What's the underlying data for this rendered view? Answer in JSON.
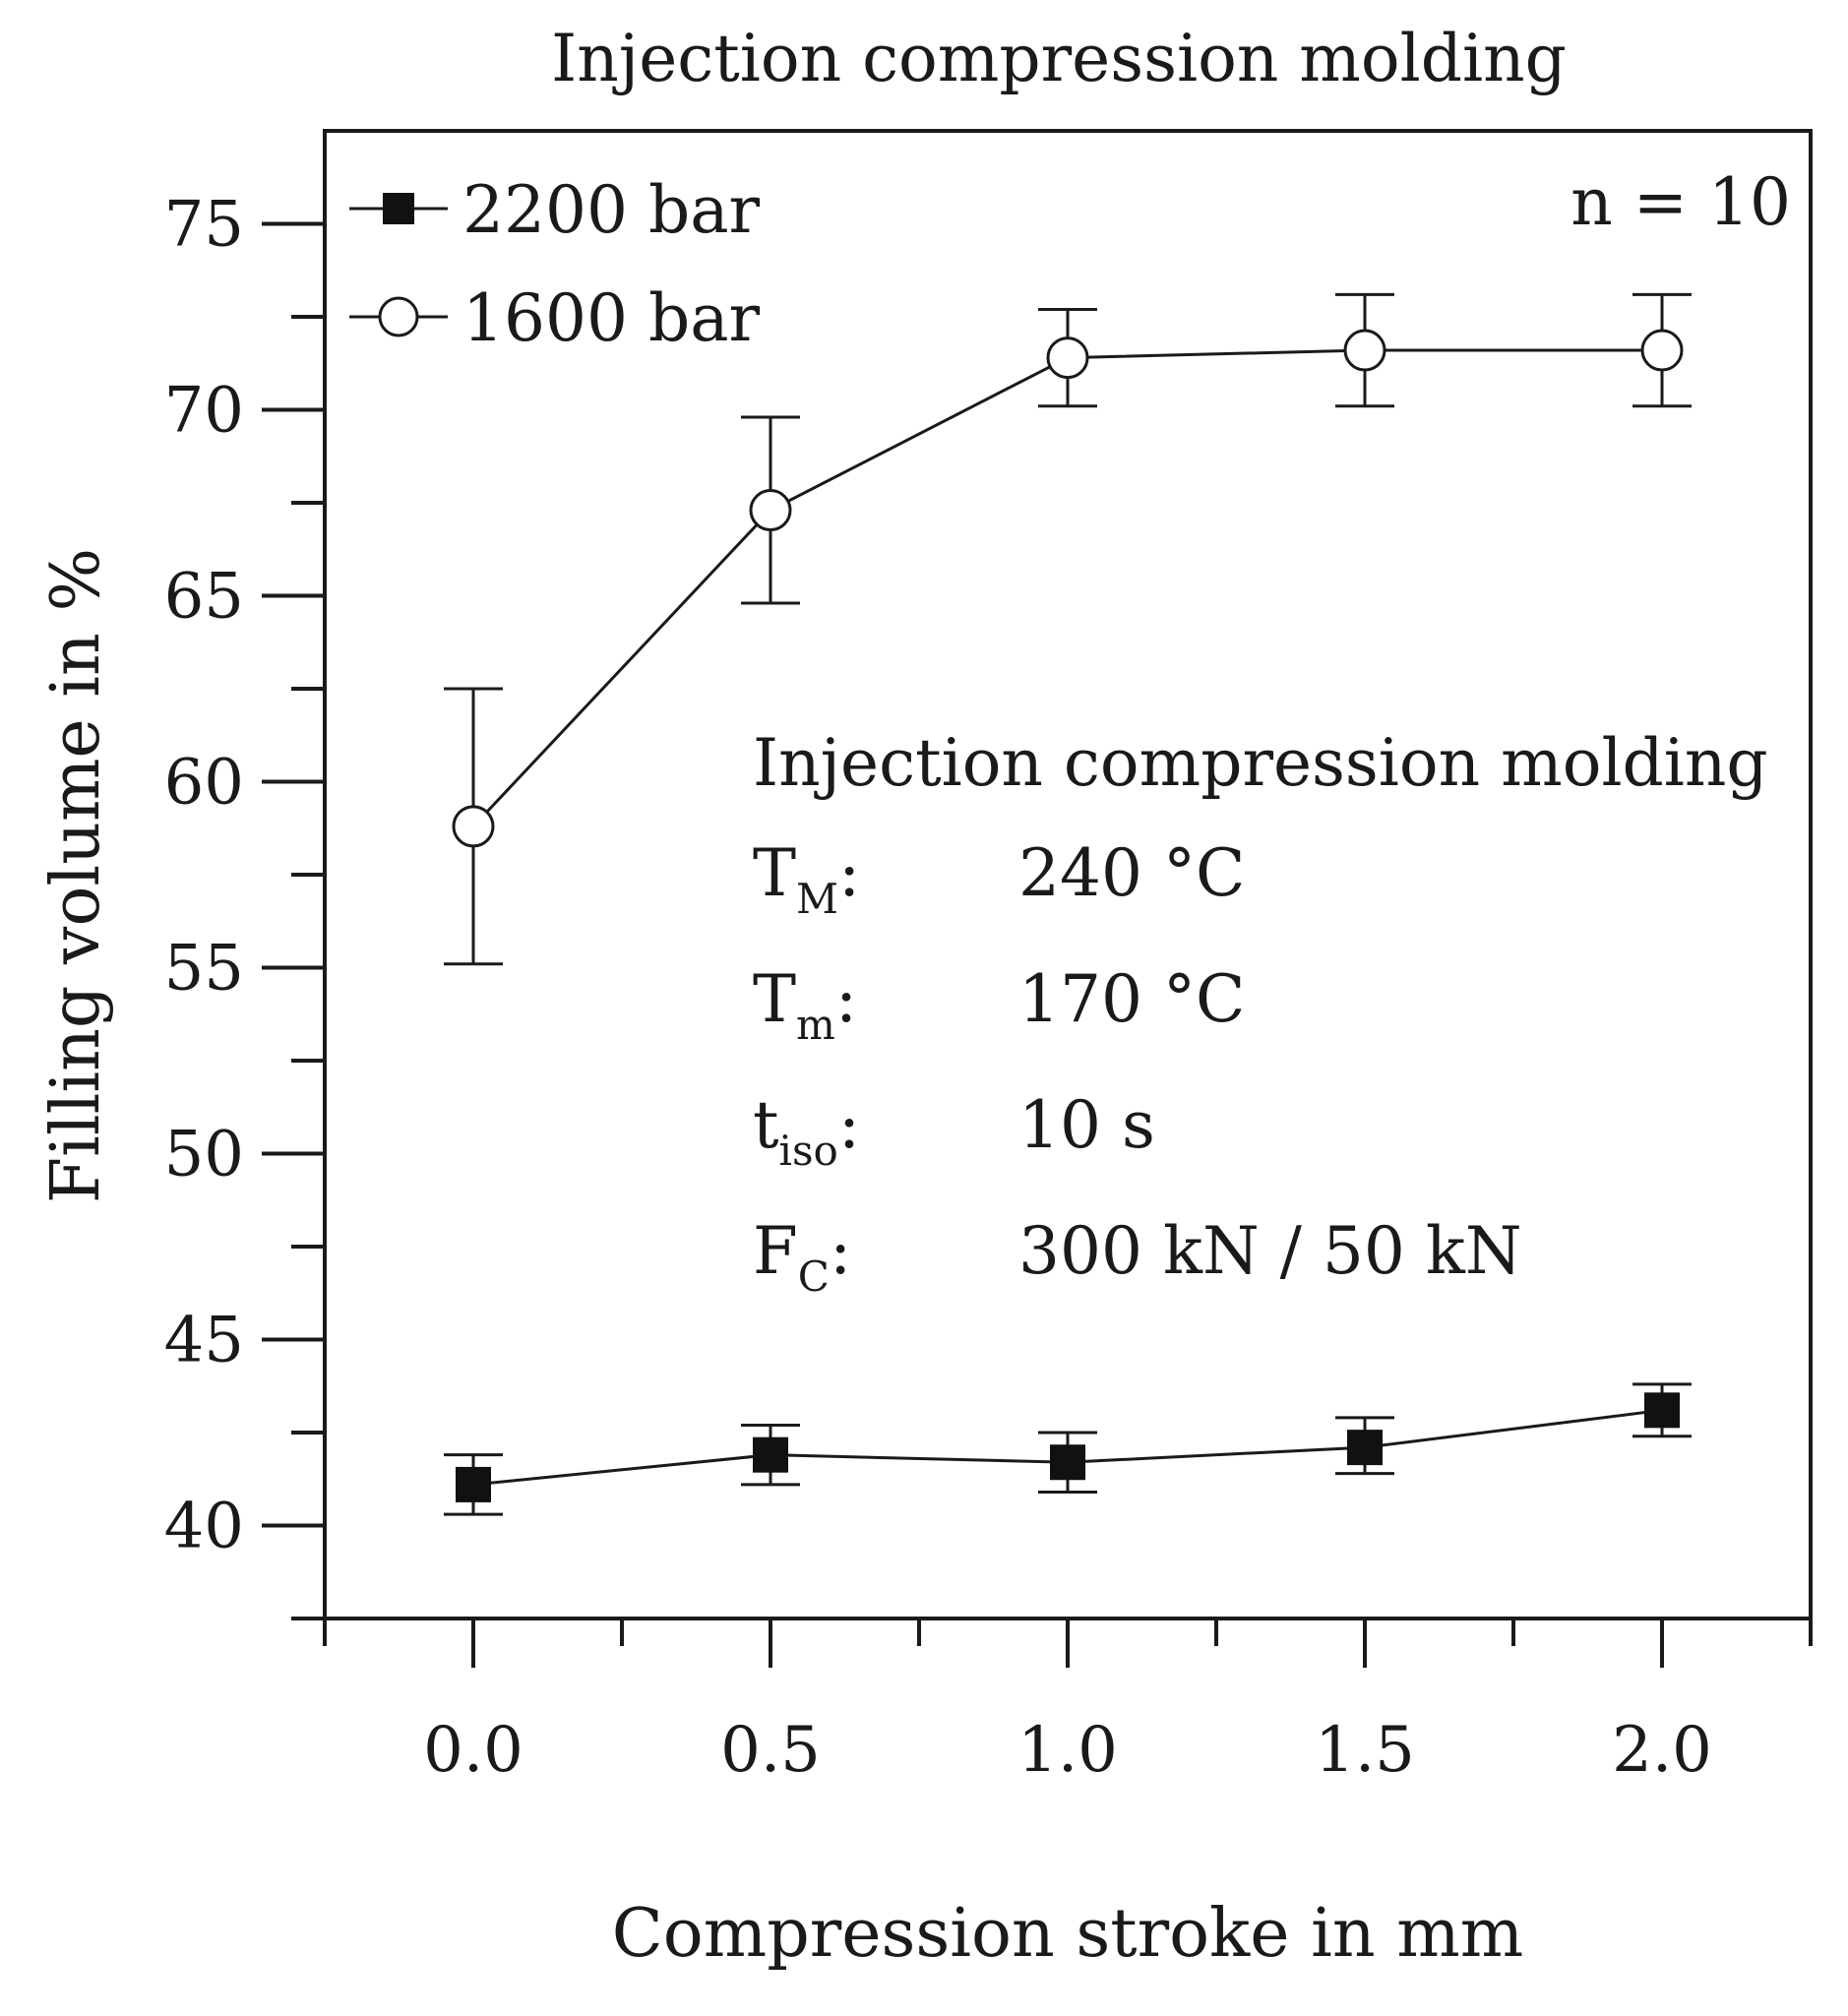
{
  "chart_data": {
    "type": "line",
    "title": "Injection compression molding",
    "xlabel": "Compression stroke in mm",
    "ylabel": "Filling volume in %",
    "xlim": [
      -0.25,
      2.25
    ],
    "ylim": [
      37.5,
      77.5
    ],
    "x_ticks": [
      0.0,
      0.5,
      1.0,
      1.5,
      2.0
    ],
    "x_tick_labels": [
      "0.0",
      "0.5",
      "1.0",
      "1.5",
      "2.0"
    ],
    "y_ticks": [
      40,
      45,
      50,
      55,
      60,
      65,
      70,
      75
    ],
    "y_tick_labels": [
      "40",
      "45",
      "50",
      "55",
      "60",
      "65",
      "70",
      "75"
    ],
    "x_minor_ticks": [
      -0.25,
      0.25,
      0.75,
      1.25,
      1.75,
      2.25
    ],
    "y_minor_ticks": [
      37.5,
      42.5,
      47.5,
      52.5,
      57.5,
      62.5,
      67.5,
      72.5
    ],
    "legend_position": "top-left",
    "series": [
      {
        "name": "2200 bar",
        "marker": "filled-square",
        "x": [
          0.0,
          0.5,
          1.0,
          1.5,
          2.0
        ],
        "y": [
          41.1,
          41.9,
          41.7,
          42.1,
          43.1
        ],
        "err_low": [
          40.3,
          41.1,
          40.9,
          41.4,
          42.4
        ],
        "err_high": [
          41.9,
          42.7,
          42.5,
          42.9,
          43.8
        ]
      },
      {
        "name": "1600 bar",
        "marker": "open-circle",
        "x": [
          0.0,
          0.5,
          1.0,
          1.5,
          2.0
        ],
        "y": [
          58.8,
          67.3,
          71.4,
          71.6,
          71.6
        ],
        "err_low": [
          55.1,
          64.8,
          70.1,
          70.1,
          70.1
        ],
        "err_high": [
          62.5,
          69.8,
          72.7,
          73.1,
          73.1
        ]
      }
    ],
    "annotations": {
      "sample_count": "n = 10",
      "box_title": "Injection compression molding",
      "params": [
        {
          "symbol": "T",
          "sub": "M",
          "suffix": ":",
          "value": "240 °C"
        },
        {
          "symbol": "T",
          "sub": "m",
          "suffix": ":",
          "value": "170 °C"
        },
        {
          "symbol": "t",
          "sub": "iso",
          "suffix": ":",
          "value": "10 s"
        },
        {
          "symbol": "F",
          "sub": "C",
          "suffix": ":",
          "value": "300 kN / 50 kN"
        }
      ]
    }
  }
}
